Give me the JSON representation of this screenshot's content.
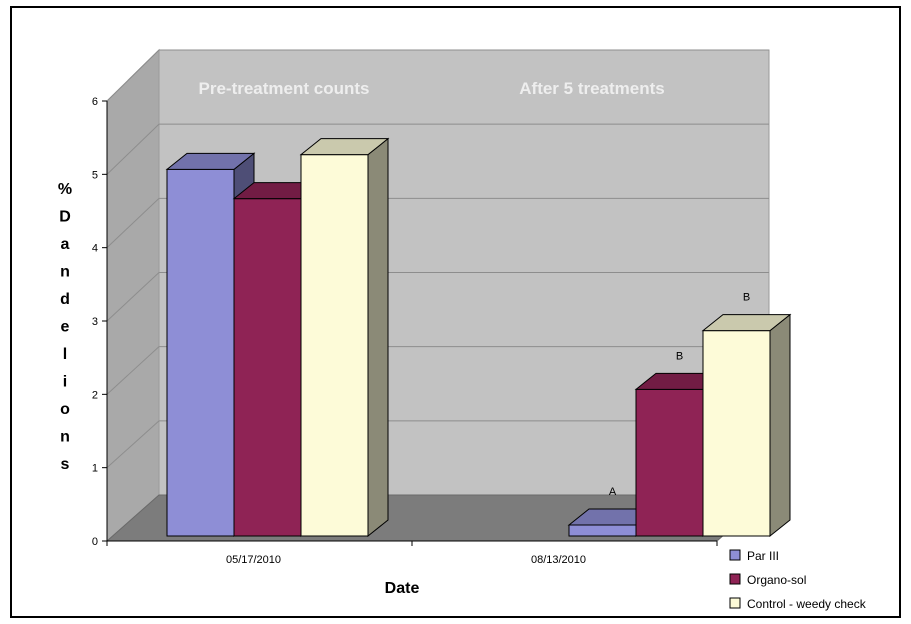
{
  "chart_data": {
    "type": "bar",
    "categories": [
      "05/17/2010",
      "08/13/2010"
    ],
    "series": [
      {
        "name": "Par III",
        "color": "#8e8ed6",
        "values": [
          5.0,
          0.15
        ]
      },
      {
        "name": "Organo-sol",
        "color": "#8f2355",
        "values": [
          4.6,
          2.0
        ]
      },
      {
        "name": "Control - weedy check",
        "color": "#fdfbd8",
        "values": [
          5.2,
          2.8
        ]
      }
    ],
    "xlabel": "Date",
    "ylabel": "% Dandelions",
    "ylabel_letters": [
      "%",
      "D",
      "a",
      "n",
      "d",
      "e",
      "l",
      "i",
      "o",
      "n",
      "s"
    ],
    "ylim": [
      0,
      6
    ],
    "yticks": [
      "0",
      "1",
      "2",
      "3",
      "4",
      "5",
      "6"
    ],
    "grid": true,
    "legend_position": "bottom-right",
    "annotations": {
      "panel_labels": [
        "Pre-treatment counts",
        "After 5 treatments"
      ],
      "significance_letters": [
        {
          "category": 1,
          "series": 0,
          "label": "A"
        },
        {
          "category": 1,
          "series": 1,
          "label": "B"
        },
        {
          "category": 1,
          "series": 2,
          "label": "B"
        }
      ]
    }
  }
}
